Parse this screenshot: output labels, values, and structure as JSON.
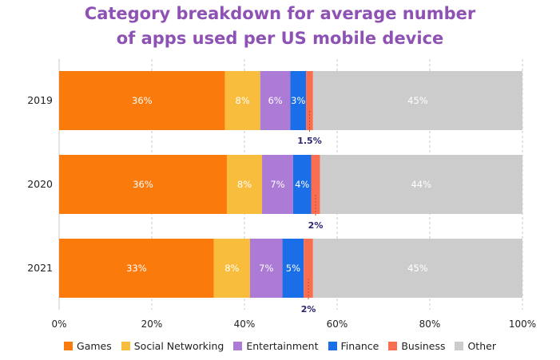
{
  "chart_data": {
    "type": "bar",
    "orientation": "horizontal",
    "stacked": true,
    "title_lines": [
      "Category breakdown for average number",
      "of apps used per US mobile device"
    ],
    "categories": [
      "2019",
      "2020",
      "2021"
    ],
    "xlim": [
      0,
      100
    ],
    "x_ticks": [
      "0%",
      "20%",
      "40%",
      "60%",
      "80%",
      "100%"
    ],
    "x_tick_values": [
      0,
      20,
      40,
      60,
      80,
      100
    ],
    "grid": "vertical dashed",
    "legend_placement": "bottom",
    "series": [
      {
        "name": "Games",
        "color": "#fb7a0c",
        "values": [
          35.8,
          36.2,
          33.4
        ],
        "labels": [
          "36%",
          "36%",
          "33%"
        ]
      },
      {
        "name": "Social Networking",
        "color": "#f9bd3e",
        "values": [
          7.6,
          7.6,
          7.8
        ],
        "labels": [
          "8%",
          "8%",
          "8%"
        ]
      },
      {
        "name": "Entertainment",
        "color": "#ab7bd6",
        "values": [
          6.5,
          6.7,
          7.0
        ],
        "labels": [
          "6%",
          "7%",
          "7%"
        ]
      },
      {
        "name": "Finance",
        "color": "#1a6ee8",
        "values": [
          3.4,
          3.9,
          4.6
        ],
        "labels": [
          "3%",
          "4%",
          "5%"
        ]
      },
      {
        "name": "Business",
        "color": "#f96e50",
        "values": [
          1.5,
          1.9,
          2.0
        ],
        "labels": [
          "1.5%",
          "2%",
          "2%"
        ]
      },
      {
        "name": "Other",
        "color": "#cccccc",
        "values": [
          45.2,
          43.7,
          45.2
        ],
        "labels": [
          "45%",
          "44%",
          "45%"
        ]
      }
    ]
  }
}
